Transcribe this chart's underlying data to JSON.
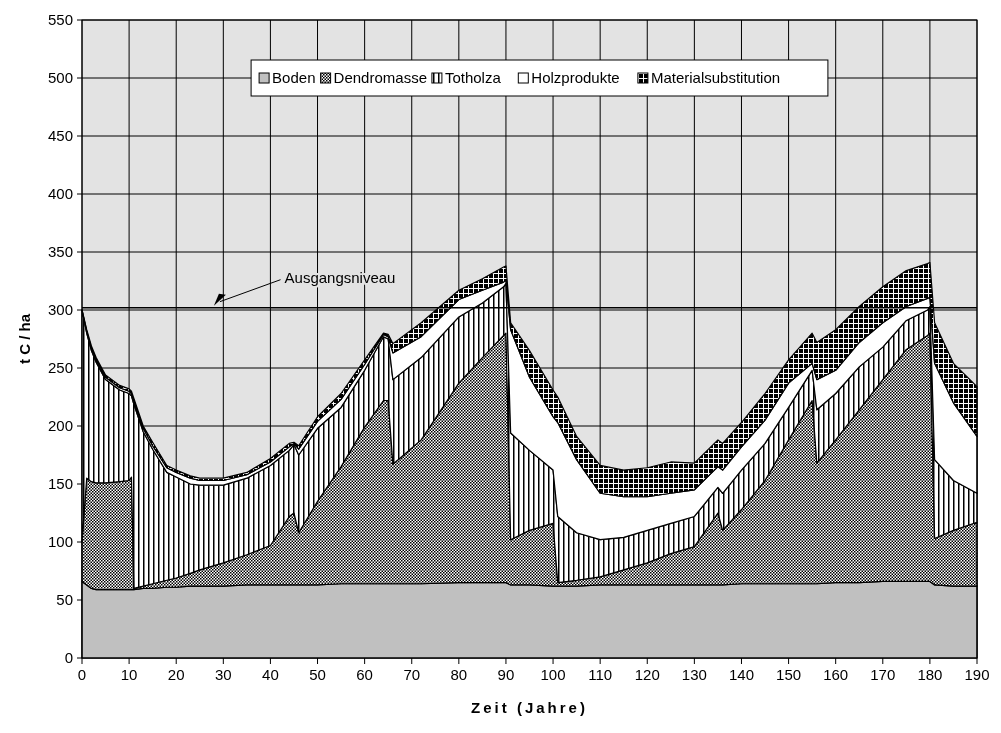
{
  "chart_data": {
    "type": "area",
    "stacked": true,
    "xlabel": "Zeit (Jahre)",
    "ylabel": "t C / ha",
    "x": [
      0,
      1,
      2,
      3,
      5,
      8,
      10,
      10.5,
      11,
      13,
      15,
      18,
      20,
      23,
      25,
      30,
      35,
      40,
      44,
      45,
      46,
      50,
      55,
      60,
      64,
      65,
      66,
      72,
      80,
      85,
      89.5,
      90,
      91,
      95,
      100,
      101,
      105,
      110,
      115,
      120,
      125,
      130,
      135,
      136,
      140,
      145,
      150,
      155,
      156,
      160,
      165,
      170,
      175,
      179.5,
      180,
      181,
      185,
      190
    ],
    "series": [
      {
        "name": "Boden",
        "color": "#c0c0c0",
        "values": [
          66,
          63,
          60,
          59,
          59,
          59,
          59,
          59,
          59,
          60,
          60,
          61,
          61,
          62,
          62,
          62,
          63,
          63,
          63,
          63,
          63,
          63,
          64,
          64,
          64,
          64,
          64,
          64,
          65,
          65,
          65,
          65,
          63,
          63,
          62,
          62,
          62,
          63,
          63,
          63,
          63,
          63,
          63,
          63,
          64,
          64,
          64,
          64,
          64,
          65,
          65,
          66,
          66,
          66,
          66,
          63,
          62,
          62
        ]
      },
      {
        "name": "Dendromasse",
        "color": "#000000",
        "values": [
          34,
          92,
          92,
          92,
          92,
          93,
          94,
          97,
          1,
          2,
          4,
          6,
          8,
          11,
          14,
          20,
          26,
          34,
          59,
          62,
          45,
          72,
          101,
          135,
          158,
          158,
          103,
          124,
          172,
          194,
          213,
          215,
          39,
          47,
          54,
          3,
          5,
          7,
          13,
          19,
          27,
          33,
          62,
          47,
          64,
          89,
          124,
          158,
          104,
          123,
          149,
          174,
          200,
          212,
          214,
          40,
          48,
          55
        ]
      },
      {
        "name": "Totholza",
        "color": "#000000",
        "values": [
          200,
          125,
          113,
          104,
          89,
          79,
          75,
          70,
          159,
          133,
          116,
          93,
          87,
          77,
          73,
          67,
          66,
          69,
          57,
          59,
          67,
          63,
          51,
          49,
          55,
          53,
          73,
          71,
          57,
          47,
          42,
          43,
          92,
          69,
          46,
          57,
          41,
          32,
          28,
          28,
          26,
          26,
          22,
          32,
          34,
          32,
          28,
          26,
          46,
          40,
          37,
          28,
          25,
          22,
          23,
          68,
          43,
          25
        ]
      },
      {
        "name": "Holzprodukte",
        "color": "#ffffff",
        "values": [
          0,
          2,
          2,
          2,
          2,
          2,
          2,
          2,
          2,
          3,
          3,
          4,
          4,
          5,
          4,
          4,
          3,
          3,
          3,
          1,
          5,
          6,
          7,
          5,
          2,
          2,
          23,
          18,
          15,
          11,
          4,
          3,
          89,
          63,
          46,
          81,
          63,
          40,
          35,
          29,
          26,
          23,
          18,
          20,
          20,
          20,
          21,
          6,
          26,
          20,
          21,
          21,
          12,
          10,
          8,
          83,
          67,
          49
        ]
      },
      {
        "name": "Materialsubstitution",
        "color": "#000000",
        "values": [
          0,
          1,
          2,
          2,
          2,
          2,
          2,
          2,
          3,
          2,
          3,
          2,
          2,
          2,
          2,
          2,
          2,
          3,
          3,
          1,
          3,
          4,
          5,
          4,
          1,
          2,
          8,
          12,
          8,
          10,
          13,
          12,
          6,
          23,
          23,
          22,
          20,
          24,
          23,
          25,
          27,
          23,
          23,
          23,
          21,
          23,
          20,
          26,
          32,
          35,
          31,
          31,
          31,
          30,
          30,
          35,
          34,
          43
        ]
      }
    ],
    "xlim": [
      0,
      190
    ],
    "xticks": [
      0,
      10,
      20,
      30,
      40,
      50,
      60,
      70,
      80,
      90,
      100,
      110,
      120,
      130,
      140,
      150,
      160,
      170,
      180,
      190
    ],
    "ylim": [
      0,
      550
    ],
    "yticks": [
      0,
      50,
      100,
      150,
      200,
      250,
      300,
      350,
      400,
      450,
      500,
      550
    ],
    "grid": true,
    "legend": "top",
    "ref_lines": [
      {
        "axis": "y",
        "value": 302,
        "label": "Ausgangsniveau",
        "color": "#000000"
      }
    ]
  }
}
